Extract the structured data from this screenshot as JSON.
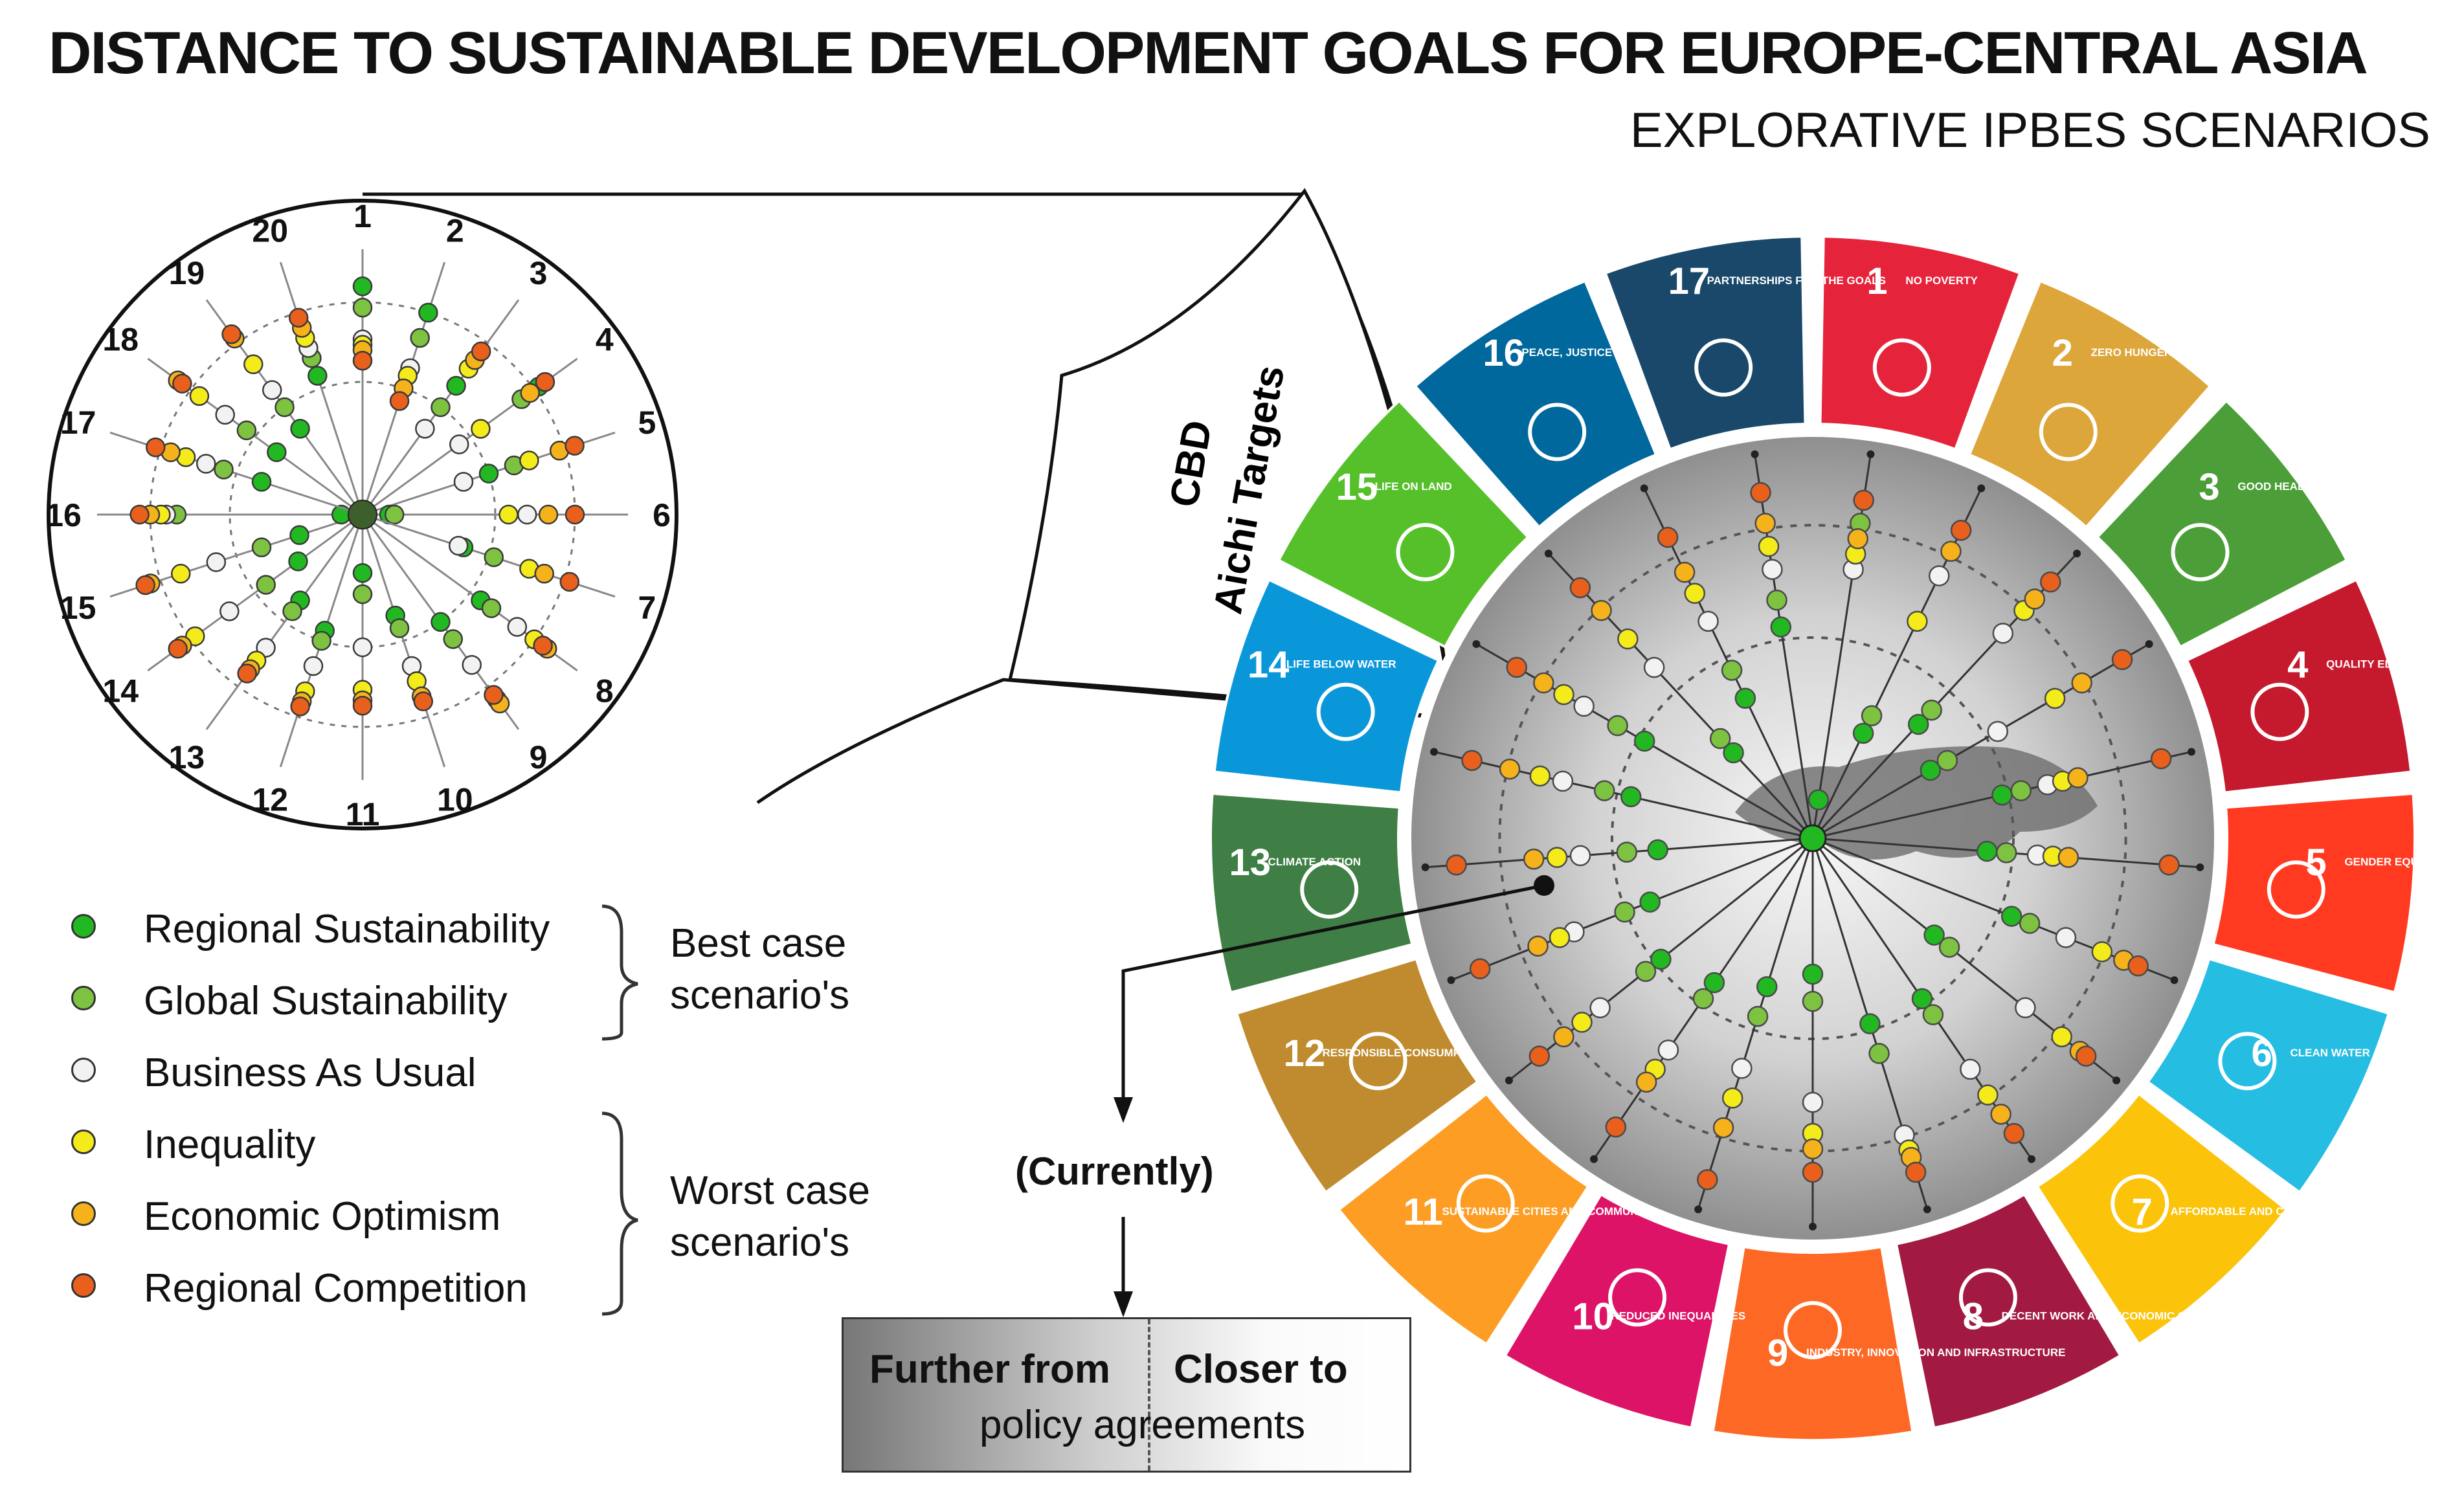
{
  "title": "DISTANCE TO SUSTAINABLE DEVELOPMENT GOALS FOR EUROPE-CENTRAL ASIA",
  "subtitle": "EXPLORATIVE  IPBES SCENARIOS",
  "cbd_label_1": "CBD",
  "cbd_label_2": "Aichi Targets",
  "legend": [
    {
      "label": "Regional Sustainability",
      "color": "#22b822"
    },
    {
      "label": "Global Sustainability",
      "color": "#7dc241"
    },
    {
      "label": "Business As Usual",
      "color": "#f2f2f2"
    },
    {
      "label": "Inequality",
      "color": "#f4ec1a"
    },
    {
      "label": "Economic Optimism",
      "color": "#f6b21a"
    },
    {
      "label": "Regional Competition",
      "color": "#e8601c"
    }
  ],
  "best_case_label": "Best case\nscenario's",
  "worst_case_label": "Worst case\nscenario's",
  "currently_label": "(Currently)",
  "scale": {
    "further": "Further from",
    "closer": "Closer to",
    "policy": "policy agreements"
  },
  "aichi_numbers": [
    "1",
    "2",
    "3",
    "4",
    "5",
    "6",
    "7",
    "8",
    "9",
    "10",
    "11",
    "12",
    "13",
    "14",
    "15",
    "16",
    "17",
    "18",
    "19",
    "20"
  ],
  "sdgs": [
    {
      "num": "1",
      "label": "NO POVERTY",
      "color": "#e5243b",
      "icon": "people-icon"
    },
    {
      "num": "2",
      "label": "ZERO HUNGER",
      "color": "#dda63a",
      "icon": "bowl-icon"
    },
    {
      "num": "3",
      "label": "GOOD HEALTH AND WELL-BEING",
      "color": "#4c9f38",
      "icon": "heartbeat-icon"
    },
    {
      "num": "4",
      "label": "QUALITY EDUCATION",
      "color": "#c5192d",
      "icon": "book-icon"
    },
    {
      "num": "5",
      "label": "GENDER EQUALITY",
      "color": "#ff3a21",
      "icon": "gender-icon"
    },
    {
      "num": "6",
      "label": "CLEAN WATER AND SANITATION",
      "color": "#26bde2",
      "icon": "water-icon"
    },
    {
      "num": "7",
      "label": "AFFORDABLE AND CLEAN ENERGY",
      "color": "#fcc30b",
      "icon": "sun-icon"
    },
    {
      "num": "8",
      "label": "DECENT WORK AND ECONOMIC GROWTH",
      "color": "#a21942",
      "icon": "growth-chart-icon"
    },
    {
      "num": "9",
      "label": "INDUSTRY, INNOVATION AND INFRASTRUCTURE",
      "color": "#fd6925",
      "icon": "cubes-icon"
    },
    {
      "num": "10",
      "label": "REDUCED INEQUALITIES",
      "color": "#dd1367",
      "icon": "equal-icon"
    },
    {
      "num": "11",
      "label": "SUSTAINABLE CITIES AND COMMUNITIES",
      "color": "#fd9d24",
      "icon": "city-icon"
    },
    {
      "num": "12",
      "label": "RESPONSIBLE CONSUMPTION AND PRODUCTION",
      "color": "#bf8b2e",
      "icon": "infinity-icon"
    },
    {
      "num": "13",
      "label": "CLIMATE ACTION",
      "color": "#3f7e44",
      "icon": "eye-globe-icon"
    },
    {
      "num": "14",
      "label": "LIFE BELOW WATER",
      "color": "#0a97d9",
      "icon": "fish-icon"
    },
    {
      "num": "15",
      "label": "LIFE ON LAND",
      "color": "#56c02b",
      "icon": "tree-icon"
    },
    {
      "num": "16",
      "label": "PEACE, JUSTICE AND STRONG INSTITUTIONS",
      "color": "#00689d",
      "icon": "dove-icon"
    },
    {
      "num": "17",
      "label": "PARTNERSHIPS FOR THE GOALS",
      "color": "#19486a",
      "icon": "rings-icon"
    }
  ],
  "aichi_radar_levels": [
    [
      0.86,
      0.78,
      0.66,
      0.64,
      0.62,
      0.58
    ],
    [
      0.8,
      0.7,
      0.58,
      0.55,
      0.5,
      0.45
    ],
    [
      0.6,
      0.5,
      0.4,
      0.68,
      0.72,
      0.76
    ],
    [
      0.82,
      0.74,
      0.45,
      0.55,
      0.78,
      0.85
    ],
    [
      0.5,
      0.6,
      0.4,
      0.66,
      0.78,
      0.84
    ],
    [
      0.1,
      0.12,
      0.62,
      0.55,
      0.7,
      0.8
    ],
    [
      0.4,
      0.52,
      0.38,
      0.66,
      0.72,
      0.82
    ],
    [
      0.55,
      0.6,
      0.72,
      0.8,
      0.86,
      0.84
    ],
    [
      0.5,
      0.58,
      0.7,
      0.86,
      0.88,
      0.84
    ],
    [
      0.4,
      0.45,
      0.6,
      0.66,
      0.72,
      0.74
    ],
    [
      0.22,
      0.3,
      0.5,
      0.66,
      0.7,
      0.72
    ],
    [
      0.46,
      0.5,
      0.6,
      0.7,
      0.74,
      0.76
    ],
    [
      0.4,
      0.45,
      0.62,
      0.68,
      0.72,
      0.74
    ],
    [
      0.3,
      0.45,
      0.62,
      0.78,
      0.84,
      0.86
    ],
    [
      0.25,
      0.4,
      0.58,
      0.72,
      0.84,
      0.86
    ],
    [
      0.08,
      0.7,
      0.74,
      0.76,
      0.8,
      0.84
    ],
    [
      0.4,
      0.55,
      0.62,
      0.7,
      0.76,
      0.82
    ],
    [
      0.4,
      0.54,
      0.64,
      0.76,
      0.86,
      0.84
    ],
    [
      0.4,
      0.5,
      0.58,
      0.7,
      0.82,
      0.84
    ],
    [
      0.55,
      0.62,
      0.66,
      0.7,
      0.74,
      0.78
    ]
  ],
  "sdg_spokes": 21,
  "sdg_radar_levels": [
    [
      0.1,
      0.82,
      0.7,
      0.74,
      0.78,
      0.88
    ],
    [
      0.3,
      0.35,
      0.75,
      0.62,
      0.82,
      0.88
    ],
    [
      0.4,
      0.45,
      0.72,
      0.8,
      0.84,
      0.9
    ],
    [
      0.35,
      0.4,
      0.55,
      0.72,
      0.8,
      0.92
    ],
    [
      0.5,
      0.55,
      0.62,
      0.66,
      0.7,
      0.92
    ],
    [
      0.45,
      0.5,
      0.58,
      0.62,
      0.66,
      0.92
    ],
    [
      0.55,
      0.6,
      0.7,
      0.8,
      0.86,
      0.9
    ],
    [
      0.4,
      0.45,
      0.7,
      0.82,
      0.88,
      0.9
    ],
    [
      0.5,
      0.55,
      0.72,
      0.8,
      0.86,
      0.92
    ],
    [
      0.5,
      0.58,
      0.8,
      0.84,
      0.86,
      0.9
    ],
    [
      0.35,
      0.42,
      0.68,
      0.76,
      0.8,
      0.86
    ],
    [
      0.4,
      0.48,
      0.62,
      0.7,
      0.78,
      0.92
    ],
    [
      0.45,
      0.5,
      0.66,
      0.72,
      0.76,
      0.9
    ],
    [
      0.5,
      0.55,
      0.7,
      0.76,
      0.82,
      0.9
    ],
    [
      0.45,
      0.52,
      0.66,
      0.7,
      0.76,
      0.92
    ],
    [
      0.4,
      0.48,
      0.6,
      0.66,
      0.72,
      0.92
    ],
    [
      0.48,
      0.55,
      0.66,
      0.72,
      0.8,
      0.9
    ],
    [
      0.5,
      0.58,
      0.68,
      0.74,
      0.8,
      0.88
    ],
    [
      0.3,
      0.35,
      0.6,
      0.7,
      0.8,
      0.88
    ],
    [
      0.4,
      0.48,
      0.62,
      0.7,
      0.76,
      0.86
    ],
    [
      0.55,
      0.62,
      0.7,
      0.76,
      0.82,
      0.9
    ]
  ]
}
